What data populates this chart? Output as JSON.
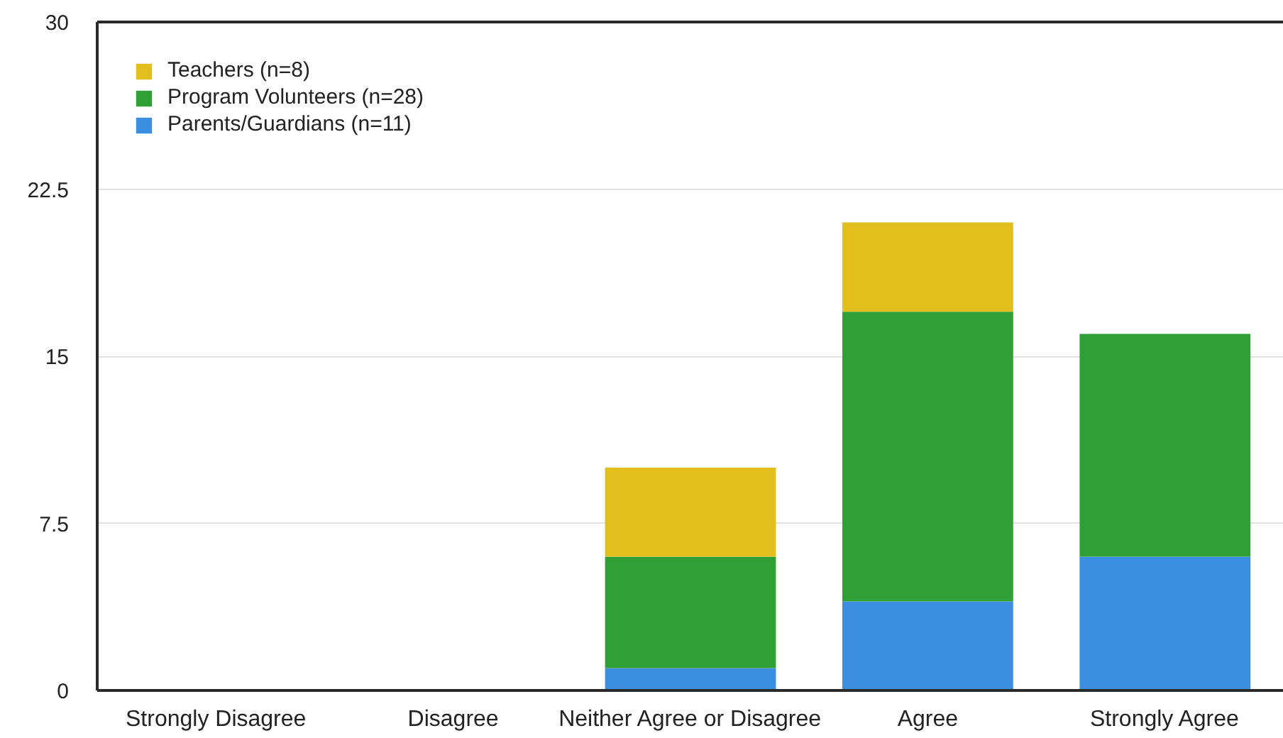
{
  "chart_data": {
    "type": "bar",
    "stacked": true,
    "categories": [
      "Strongly Disagree",
      "Disagree",
      "Neither Agree or Disagree",
      "Agree",
      "Strongly Agree"
    ],
    "series": [
      {
        "name": "Parents/Guardians (n=11)",
        "color": "#3b8ee0",
        "values": [
          0,
          0,
          1,
          4,
          6
        ]
      },
      {
        "name": "Program Volunteers (n=28)",
        "color": "#2f9f36",
        "values": [
          0,
          0,
          5,
          13,
          10
        ]
      },
      {
        "name": "Teachers (n=8)",
        "color": "#e3bf1e",
        "values": [
          0,
          0,
          4,
          4,
          0
        ]
      }
    ],
    "ylim": [
      0,
      30
    ],
    "yticks": [
      0,
      7.5,
      15,
      22.5,
      30
    ],
    "grid": "y",
    "legend": "top left"
  }
}
